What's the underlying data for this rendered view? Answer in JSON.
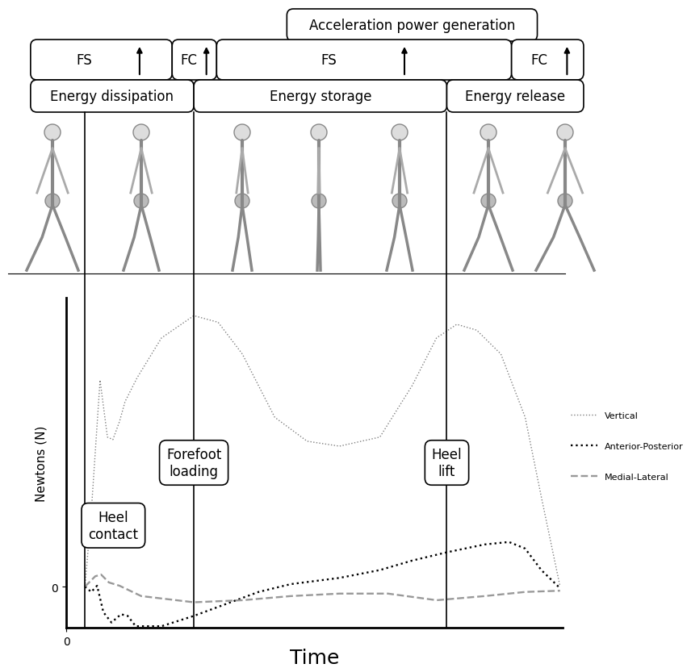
{
  "chart_data": {
    "type": "line",
    "xlabel": "Time",
    "ylabel": "Newtons (N)",
    "xlim": [
      0,
      13.5
    ],
    "ylim": [
      -100,
      700
    ],
    "xticks": [
      0
    ],
    "yticks": [
      0
    ],
    "grid": false,
    "legend": "center left",
    "series": [
      {
        "name": "Vertical",
        "color": "#808080",
        "line_style": "dotted",
        "x": [
          0.51,
          0.68,
          0.92,
          1.12,
          1.27,
          1.45,
          1.6,
          1.93,
          2.59,
          3.47,
          4.13,
          4.79,
          5.67,
          6.55,
          7.43,
          8.53,
          9.41,
          10.07,
          10.62,
          11.16,
          11.82,
          12.48,
          12.92,
          13.43
        ],
        "values": [
          0,
          179,
          500,
          362,
          356,
          400,
          448,
          506,
          602,
          656,
          640,
          563,
          410,
          352,
          340,
          362,
          487,
          602,
          635,
          621,
          563,
          410,
          217,
          0
        ]
      },
      {
        "name": "Anterior-Posterior",
        "color": "#000000",
        "line_style": "dotted",
        "x": [
          0.51,
          0.68,
          0.84,
          1.01,
          1.23,
          1.49,
          1.67,
          1.89,
          2.59,
          3.47,
          4.35,
          5.23,
          6.11,
          7.43,
          8.53,
          9.41,
          10.35,
          11.38,
          12.04,
          12.48,
          12.92,
          13.43
        ],
        "values": [
          0,
          -13,
          2,
          -62,
          -87,
          -67,
          -71,
          -96,
          -96,
          -71,
          -42,
          -13,
          6,
          21,
          40,
          63,
          83,
          102,
          108,
          92,
          40,
          -4
        ]
      },
      {
        "name": "Medial-Lateral",
        "color": "#999999",
        "line_style": "dashed",
        "x": [
          0.51,
          0.79,
          0.95,
          1.16,
          1.45,
          2.04,
          3.47,
          4.79,
          6.11,
          7.43,
          8.75,
          10.07,
          11.38,
          12.48,
          13.43
        ],
        "values": [
          0,
          25,
          29,
          10,
          2,
          -23,
          -38,
          -33,
          -23,
          -17,
          -17,
          -33,
          -23,
          -13,
          -10
        ]
      }
    ],
    "events": [
      {
        "label": "Heel\ncontact",
        "x": 0.51
      },
      {
        "label": "Forefoot\nloading",
        "x": 3.47
      },
      {
        "label": "Heel\nlift",
        "x": 10.35
      }
    ],
    "phase_rows": [
      [
        {
          "label": "Acceleration power generation",
          "start": 6.0,
          "end": 12.81
        }
      ],
      [
        {
          "label": "FS",
          "start": -0.97,
          "end": 2.88
        },
        {
          "label": "FC",
          "start": 2.88,
          "end": 4.09
        },
        {
          "label": "FS",
          "start": 4.09,
          "end": 12.11
        },
        {
          "label": "FC",
          "start": 12.11,
          "end": 14.07
        }
      ],
      [
        {
          "label": "Energy dissipation",
          "start": -0.97,
          "end": 3.47
        },
        {
          "label": "Energy storage",
          "start": 3.47,
          "end": 10.35
        },
        {
          "label": "Energy release",
          "start": 10.35,
          "end": 14.07
        }
      ]
    ]
  }
}
